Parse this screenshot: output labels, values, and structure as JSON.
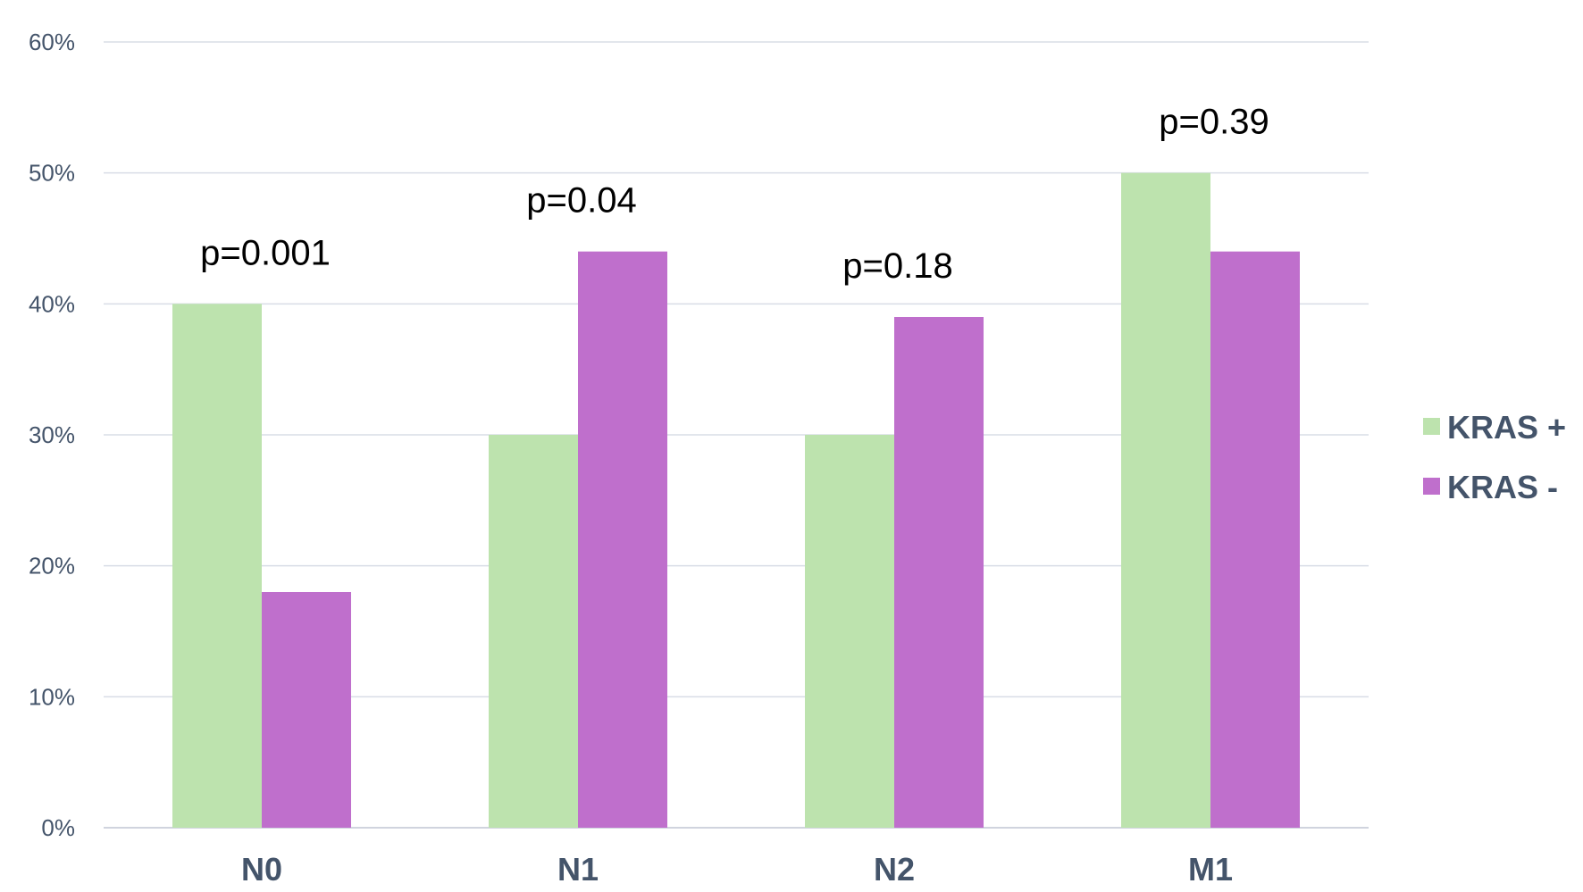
{
  "chart_data": {
    "type": "bar",
    "categories": [
      "N0",
      "N1",
      "N2",
      "M1"
    ],
    "series": [
      {
        "name": "KRAS +",
        "values": [
          40,
          30,
          30,
          50
        ],
        "color": "#bde3ae"
      },
      {
        "name": "KRAS -",
        "values": [
          18,
          44,
          39,
          44
        ],
        "color": "#bf6fcc"
      }
    ],
    "yticks": [
      "0%",
      "10%",
      "20%",
      "30%",
      "40%",
      "50%",
      "60%"
    ],
    "ylim": [
      0,
      60
    ],
    "grid": true,
    "legend": "right",
    "annotations": [
      "p=0.001",
      "p=0.04",
      "p=0.18",
      "p=0.39"
    ]
  }
}
